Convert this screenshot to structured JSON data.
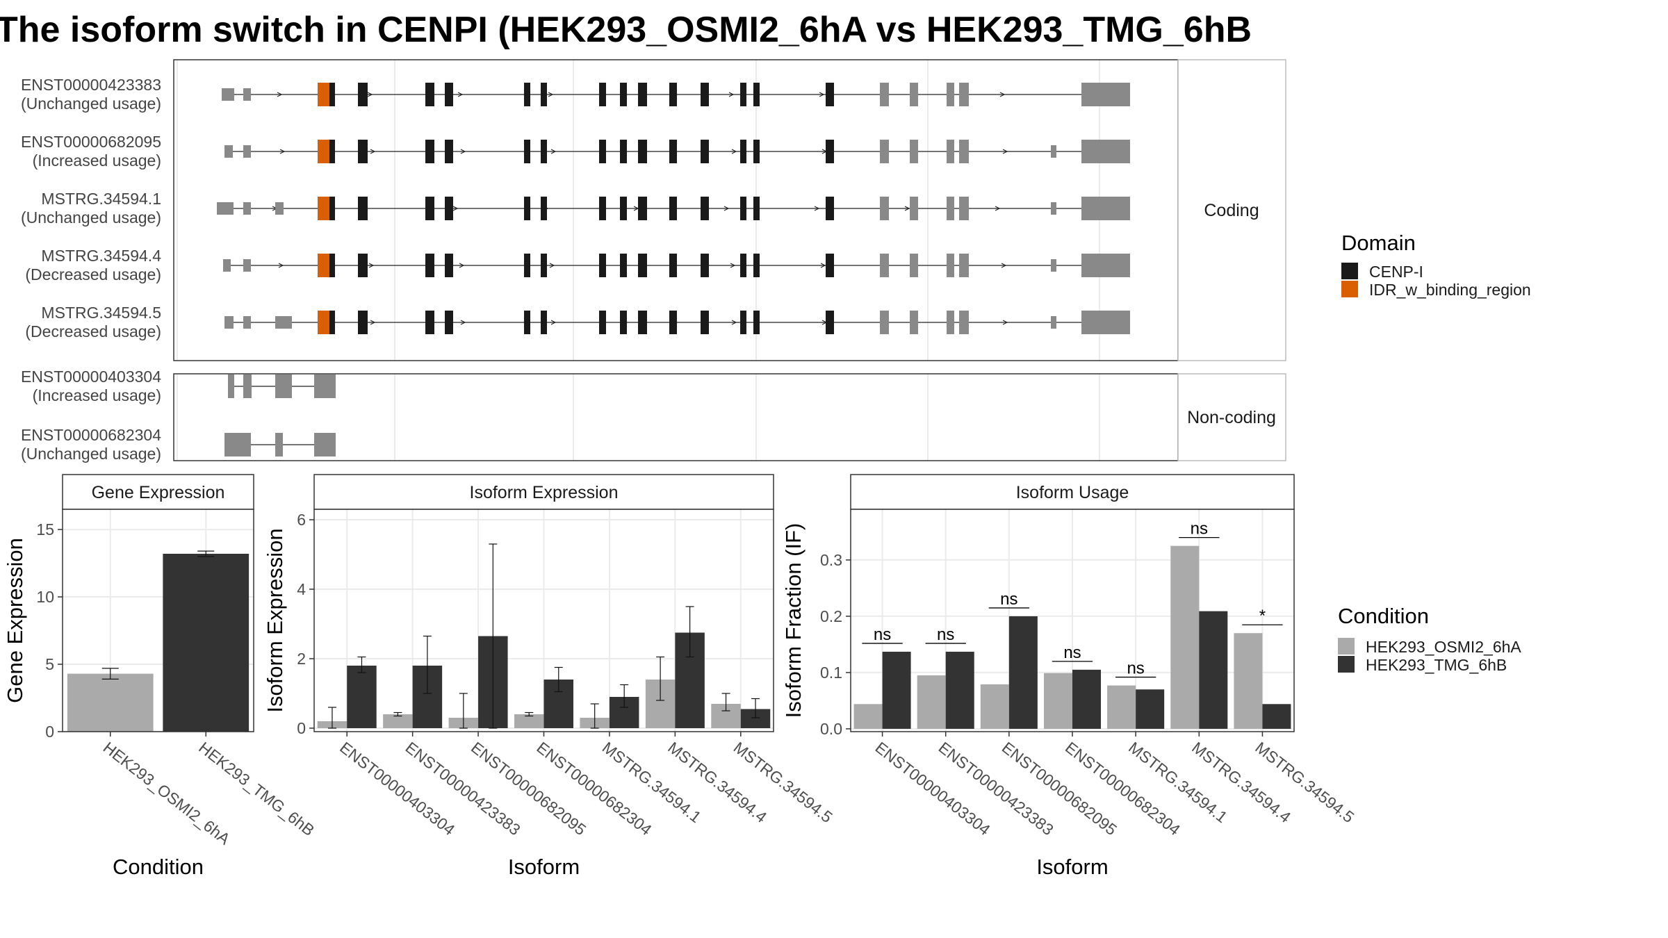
{
  "title": "The isoform switch in CENPI (HEK293_OSMI2_6hA vs HEK293_TMG_6hB",
  "colors": {
    "utr": "#898989",
    "cenp": "#1a1a1a",
    "idr": "#d95f02",
    "cond_a": "#aaaaaa",
    "cond_b": "#333333",
    "grid": "#ebebeb",
    "panel_border": "#333333",
    "strip_border": "#bbbbbb"
  },
  "structure": {
    "coding_label": "Coding",
    "noncoding_label": "Non-coding",
    "coding": [
      {
        "id": "ENST00000423383",
        "usage": "(Unchanged usage)"
      },
      {
        "id": "ENST00000682095",
        "usage": "(Increased usage)"
      },
      {
        "id": "MSTRG.34594.1",
        "usage": "(Unchanged usage)"
      },
      {
        "id": "MSTRG.34594.4",
        "usage": "(Decreased usage)"
      },
      {
        "id": "MSTRG.34594.5",
        "usage": "(Decreased usage)"
      }
    ],
    "noncoding": [
      {
        "id": "ENST00000403304",
        "usage": "(Increased usage)"
      },
      {
        "id": "ENST00000682304",
        "usage": "(Unchanged usage)"
      }
    ]
  },
  "legend_domain": {
    "title": "Domain",
    "items": [
      {
        "label": "CENP-I",
        "color": "#1a1a1a"
      },
      {
        "label": "IDR_w_binding_region",
        "color": "#d95f02"
      }
    ]
  },
  "legend_condition": {
    "title": "Condition",
    "items": [
      {
        "label": "HEK293_OSMI2_6hA",
        "color": "#aaaaaa"
      },
      {
        "label": "HEK293_TMG_6hB",
        "color": "#333333"
      }
    ]
  },
  "chart_data": [
    {
      "type": "bar",
      "title": "Gene Expression",
      "xlabel": "Condition",
      "ylabel": "Gene Expression",
      "ylim": [
        0,
        16.5
      ],
      "yticks": [
        0,
        5,
        10,
        15
      ],
      "categories": [
        "HEK293_OSMI2_6hA",
        "HEK293_TMG_6hB"
      ],
      "values": [
        4.3,
        13.2
      ],
      "error_low": [
        3.9,
        13.0
      ],
      "error_high": [
        4.7,
        13.4
      ]
    },
    {
      "type": "bar",
      "title": "Isoform Expression",
      "xlabel": "Isoform",
      "ylabel": "Isoform Expression",
      "ylim": [
        -0.1,
        6.3
      ],
      "yticks": [
        0,
        2,
        4,
        6
      ],
      "categories": [
        "ENST00000403304",
        "ENST00000423383",
        "ENST00000682095",
        "ENST00000682304",
        "MSTRG.34594.1",
        "MSTRG.34594.4",
        "MSTRG.34594.5"
      ],
      "series": [
        {
          "name": "HEK293_OSMI2_6hA",
          "values": [
            0.2,
            0.4,
            0.3,
            0.4,
            0.3,
            1.4,
            0.7
          ],
          "error_low": [
            0.0,
            0.35,
            0.0,
            0.35,
            0.0,
            0.8,
            0.5
          ],
          "error_high": [
            0.6,
            0.45,
            1.0,
            0.45,
            0.7,
            2.05,
            1.0
          ]
        },
        {
          "name": "HEK293_TMG_6hB",
          "values": [
            1.8,
            1.8,
            2.65,
            1.4,
            0.9,
            2.75,
            0.55
          ],
          "error_low": [
            1.6,
            1.0,
            0.0,
            1.05,
            0.6,
            2.05,
            0.3
          ],
          "error_high": [
            2.05,
            2.65,
            5.3,
            1.75,
            1.25,
            3.5,
            0.85
          ]
        }
      ]
    },
    {
      "type": "bar",
      "title": "Isoform Usage",
      "xlabel": "Isoform",
      "ylabel": "Isoform Fraction (IF)",
      "ylim": [
        -0.005,
        0.39
      ],
      "yticks": [
        0.0,
        0.1,
        0.2,
        0.3
      ],
      "ytick_labels": [
        "0.0",
        "0.1",
        "0.2",
        "0.3"
      ],
      "categories": [
        "ENST00000403304",
        "ENST00000423383",
        "ENST00000682095",
        "ENST00000682304",
        "MSTRG.34594.1",
        "MSTRG.34594.4",
        "MSTRG.34594.5"
      ],
      "series": [
        {
          "name": "HEK293_OSMI2_6hA",
          "values": [
            0.044,
            0.095,
            0.079,
            0.099,
            0.077,
            0.325,
            0.17
          ]
        },
        {
          "name": "HEK293_TMG_6hB",
          "values": [
            0.137,
            0.137,
            0.2,
            0.105,
            0.07,
            0.209,
            0.044
          ]
        }
      ],
      "significance": [
        "ns",
        "ns",
        "ns",
        "ns",
        "ns",
        "ns",
        "*"
      ]
    }
  ]
}
